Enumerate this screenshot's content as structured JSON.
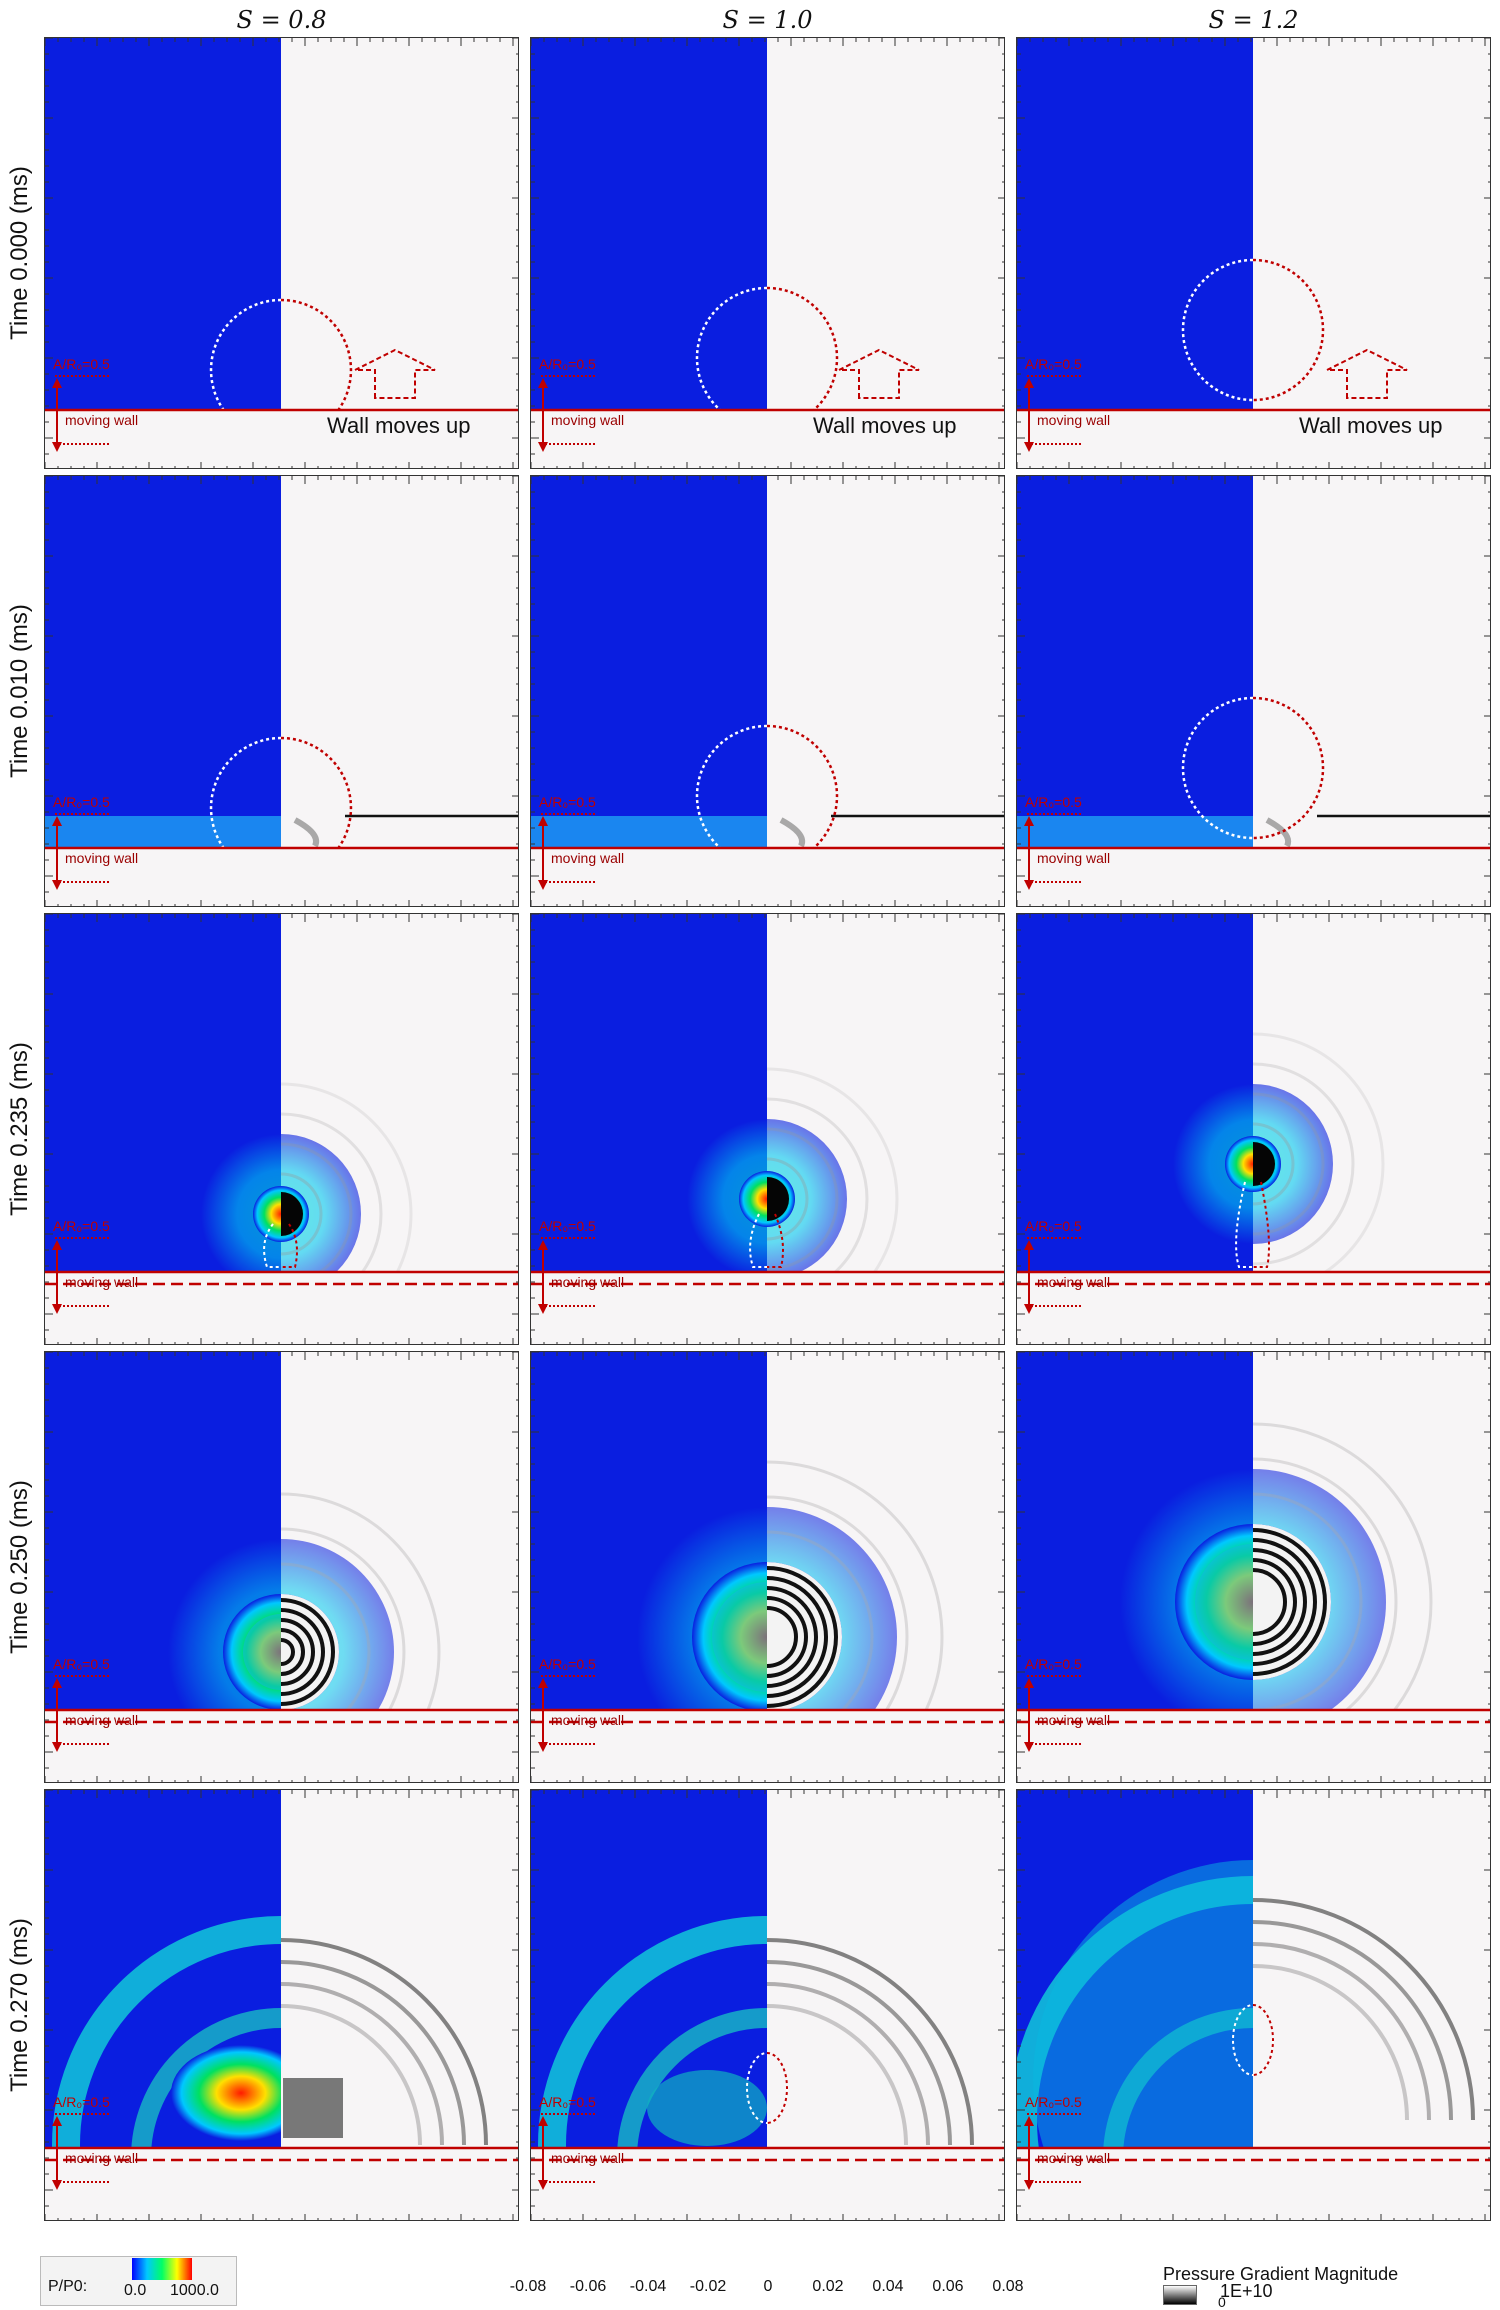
{
  "columns": [
    {
      "label": "S = 0.8"
    },
    {
      "label": "S = 1.0"
    },
    {
      "label": "S = 1.2"
    }
  ],
  "rows": [
    {
      "time_label": "Time 0.000 (ms)",
      "stage": 0
    },
    {
      "time_label": "Time 0.010 (ms)",
      "stage": 1
    },
    {
      "time_label": "Time 0.235 (ms)",
      "stage": 2
    },
    {
      "time_label": "Time 0.250 (ms)",
      "stage": 3
    },
    {
      "time_label": "Time 0.270 (ms)",
      "stage": 4
    }
  ],
  "panel_labels": {
    "amplitude": "A/R₀=0.5",
    "moving_wall": "moving wall",
    "wall_moves_up": "Wall moves up"
  },
  "x_axis": {
    "ticks": [
      "-0.08",
      "-0.06",
      "-0.04",
      "-0.02",
      "0",
      "0.02",
      "0.04",
      "0.06",
      "0.08"
    ]
  },
  "legend_pressure": {
    "label": "P/P0:",
    "min": "0.0",
    "max": "1000.0",
    "colormap": [
      "#0000ff",
      "#00c8ff",
      "#00ff66",
      "#ffff00",
      "#ff0000"
    ]
  },
  "legend_gradient": {
    "title": "Pressure Gradient Magnitude",
    "max": "1E+10",
    "min": "0",
    "colormap": [
      "#ffffff",
      "#000000"
    ]
  },
  "colors": {
    "blue_background": "#0a1ee0",
    "red_wall": "#c00000",
    "light_background": "#f7f5f6"
  }
}
